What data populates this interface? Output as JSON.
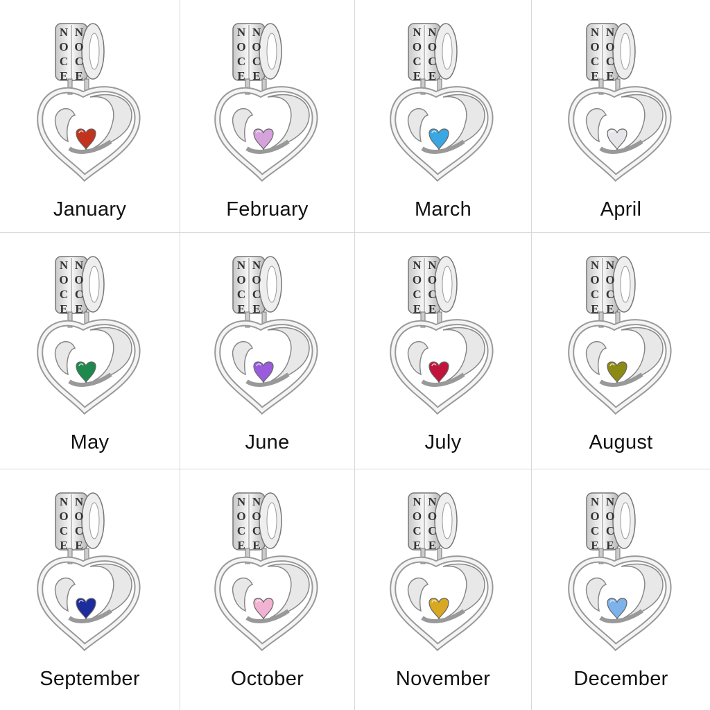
{
  "engraving": "NOCE",
  "months": [
    {
      "label": "January",
      "stone_color": "#c3321c"
    },
    {
      "label": "February",
      "stone_color": "#d6a2dc"
    },
    {
      "label": "March",
      "stone_color": "#3aa6e2"
    },
    {
      "label": "April",
      "stone_color": "#e6e6ea"
    },
    {
      "label": "May",
      "stone_color": "#1b8a4c"
    },
    {
      "label": "June",
      "stone_color": "#9a5cdc"
    },
    {
      "label": "July",
      "stone_color": "#c0143c"
    },
    {
      "label": "August",
      "stone_color": "#8c8a12"
    },
    {
      "label": "September",
      "stone_color": "#1c2c9c"
    },
    {
      "label": "October",
      "stone_color": "#f2b2d2"
    },
    {
      "label": "November",
      "stone_color": "#d8a822"
    },
    {
      "label": "December",
      "stone_color": "#7eb2ea"
    }
  ]
}
